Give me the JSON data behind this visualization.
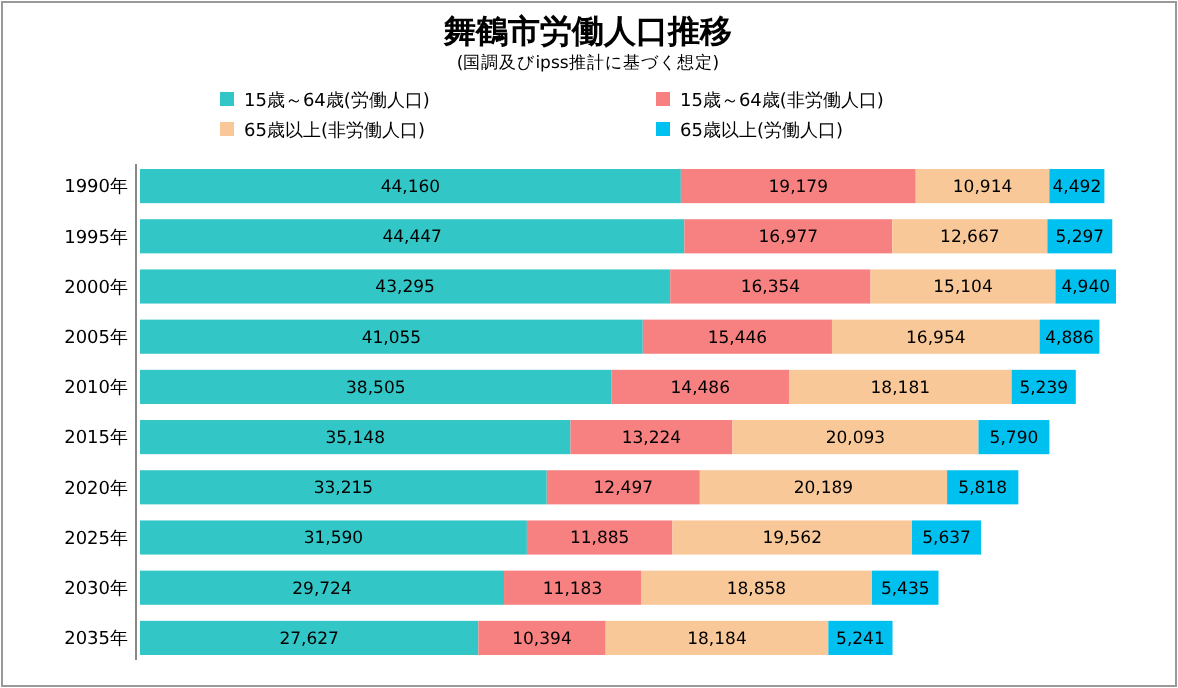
{
  "chart_data": {
    "type": "bar",
    "orientation": "horizontal",
    "stacked": true,
    "legend": "top",
    "title": "舞鶴市労働人口推移",
    "subtitle": "(国調及びipss推計に基づく想定)",
    "categories": [
      "1990年",
      "1995年",
      "2000年",
      "2005年",
      "2010年",
      "2015年",
      "2020年",
      "2025年",
      "2030年",
      "2035年"
    ],
    "series": [
      {
        "name": "15歳～64歳(労働人口)",
        "color": "#33c6c6",
        "values": [
          44160,
          44447,
          43295,
          41055,
          38505,
          35148,
          33215,
          31590,
          29724,
          27627
        ],
        "value_labels": [
          "44,160",
          "44,447",
          "43,295",
          "41,055",
          "38,505",
          "35,148",
          "33,215",
          "31,590",
          "29,724",
          "27,627"
        ]
      },
      {
        "name": "15歳～64歳(非労働人口)",
        "color": "#f78080",
        "values": [
          19179,
          16977,
          16354,
          15446,
          14486,
          13224,
          12497,
          11885,
          11183,
          10394
        ],
        "value_labels": [
          "19,179",
          "16,977",
          "16,354",
          "15,446",
          "14,486",
          "13,224",
          "12,497",
          "11,885",
          "11,183",
          "10,394"
        ]
      },
      {
        "name": "65歳以上(非労働人口)",
        "color": "#f9c898",
        "values": [
          10914,
          12667,
          15104,
          16954,
          18181,
          20093,
          20189,
          19562,
          18858,
          18184
        ],
        "value_labels": [
          "10,914",
          "12,667",
          "15,104",
          "16,954",
          "18,181",
          "20,093",
          "20,189",
          "19,562",
          "18,858",
          "18,184"
        ]
      },
      {
        "name": "65歳以上(労働人口)",
        "color": "#00c0f0",
        "values": [
          4492,
          5297,
          4940,
          4886,
          5239,
          5790,
          5818,
          5637,
          5435,
          5241
        ],
        "value_labels": [
          "4,492",
          "5,297",
          "4,940",
          "4,886",
          "5,239",
          "5,790",
          "5,818",
          "5,637",
          "5,435",
          "5,241"
        ]
      }
    ]
  }
}
